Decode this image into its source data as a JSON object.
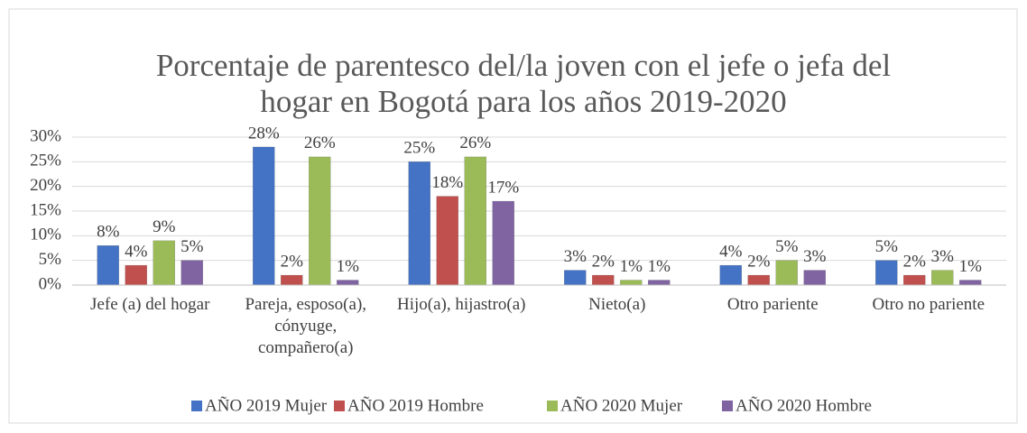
{
  "chart_data": {
    "type": "bar",
    "title": [
      "Porcentaje de parentesco del/la joven con el jefe o jefa del",
      "hogar en Bogotá para los años 2019-2020"
    ],
    "categories": [
      "Jefe (a) del hogar",
      "Pareja, esposo(a), cónyuge, compañero(a)",
      "Hijo(a), hijastro(a)",
      "Nieto(a)",
      "Otro pariente",
      "Otro no pariente"
    ],
    "series": [
      {
        "name": "AÑO 2019 Mujer",
        "color": "#4472c4",
        "values": [
          8,
          28,
          25,
          3,
          4,
          5
        ],
        "value_labels": [
          "8%",
          "28%",
          "25%",
          "3%",
          "4%",
          "5%"
        ]
      },
      {
        "name": "AÑO 2019 Hombre",
        "color": "#c0504d",
        "values": [
          4,
          2,
          18,
          2,
          2,
          2
        ],
        "value_labels": [
          "4%",
          "2%",
          "18%",
          "2%",
          "2%",
          "2%"
        ]
      },
      {
        "name": "AÑO 2020 Mujer",
        "color": "#9bbb59",
        "values": [
          9,
          26,
          26,
          1,
          5,
          3
        ],
        "value_labels": [
          "9%",
          "26%",
          "26%",
          "1%",
          "5%",
          "3%"
        ]
      },
      {
        "name": "AÑO 2020 Hombre",
        "color": "#8064a2",
        "values": [
          5,
          1,
          17,
          1,
          3,
          1
        ],
        "value_labels": [
          "5%",
          "1%",
          "17%",
          "1%",
          "3%",
          "1%"
        ]
      }
    ],
    "ylim": [
      0,
      30
    ],
    "yticks": [
      {
        "value": 0,
        "label": "0%"
      },
      {
        "value": 5,
        "label": "5%"
      },
      {
        "value": 10,
        "label": "10%"
      },
      {
        "value": 15,
        "label": "15%"
      },
      {
        "value": 20,
        "label": "20%"
      },
      {
        "value": 25,
        "label": "25%"
      },
      {
        "value": 30,
        "label": "30%"
      }
    ],
    "grid": true,
    "legend": "bottom"
  }
}
